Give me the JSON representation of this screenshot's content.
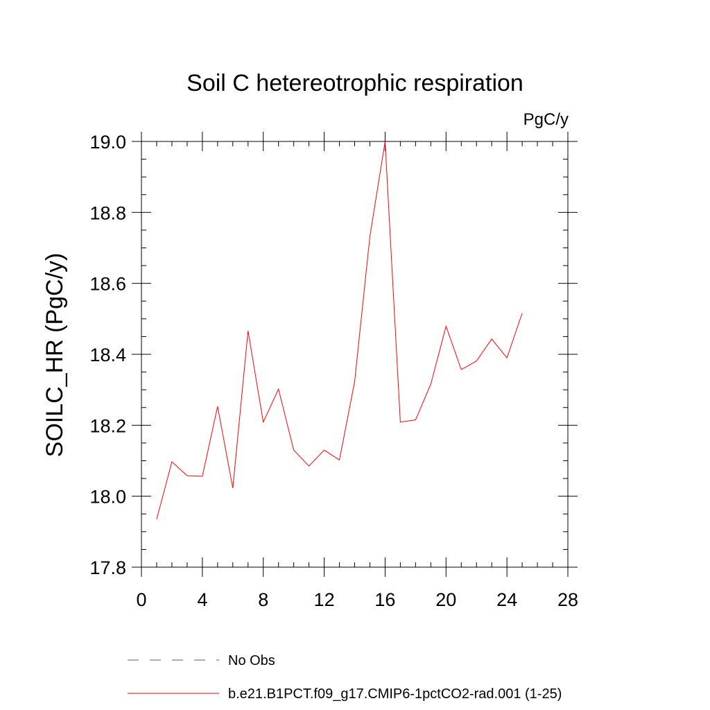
{
  "chart_data": {
    "type": "line",
    "title": "Soil C hetereotrophic respiration",
    "units": "PgC/y",
    "ylabel": "SOILC_HR  (PgC/y)",
    "xlabel": "",
    "xlim": [
      0,
      28
    ],
    "ylim": [
      17.8,
      19.0
    ],
    "x_ticks": [
      0,
      4,
      8,
      12,
      16,
      20,
      24,
      28
    ],
    "y_ticks": [
      17.8,
      18.0,
      18.2,
      18.4,
      18.6,
      18.8,
      19.0
    ],
    "x_tick_labels": [
      "0",
      "4",
      "8",
      "12",
      "16",
      "20",
      "24",
      "28"
    ],
    "y_tick_labels": [
      "17.8",
      "18.0",
      "18.2",
      "18.4",
      "18.6",
      "18.8",
      "19.0"
    ],
    "grid": false,
    "legend_position": "bottom",
    "series": [
      {
        "name": "b.e21.B1PCT.f09_g17.CMIP6-1pctCO2-rad.001 (1-25)",
        "color": "#ff0000",
        "style": "solid",
        "x": [
          1,
          2,
          3,
          4,
          5,
          6,
          7,
          8,
          9,
          10,
          11,
          12,
          13,
          14,
          15,
          16,
          17,
          18,
          19,
          20,
          21,
          22,
          23,
          24,
          25
        ],
        "y": [
          17.935,
          18.097,
          18.058,
          18.056,
          18.253,
          18.023,
          18.466,
          18.209,
          18.302,
          18.13,
          18.085,
          18.13,
          18.102,
          18.323,
          18.732,
          19.0,
          18.209,
          18.215,
          18.316,
          18.479,
          18.357,
          18.381,
          18.443,
          18.39,
          18.516
        ]
      }
    ],
    "legend": [
      {
        "label": "No Obs",
        "color": "#5a4fa0",
        "style": "dashed"
      },
      {
        "label": "b.e21.B1PCT.f09_g17.CMIP6-1pctCO2-rad.001 (1-25)",
        "color": "#ff0000",
        "style": "solid"
      }
    ]
  }
}
